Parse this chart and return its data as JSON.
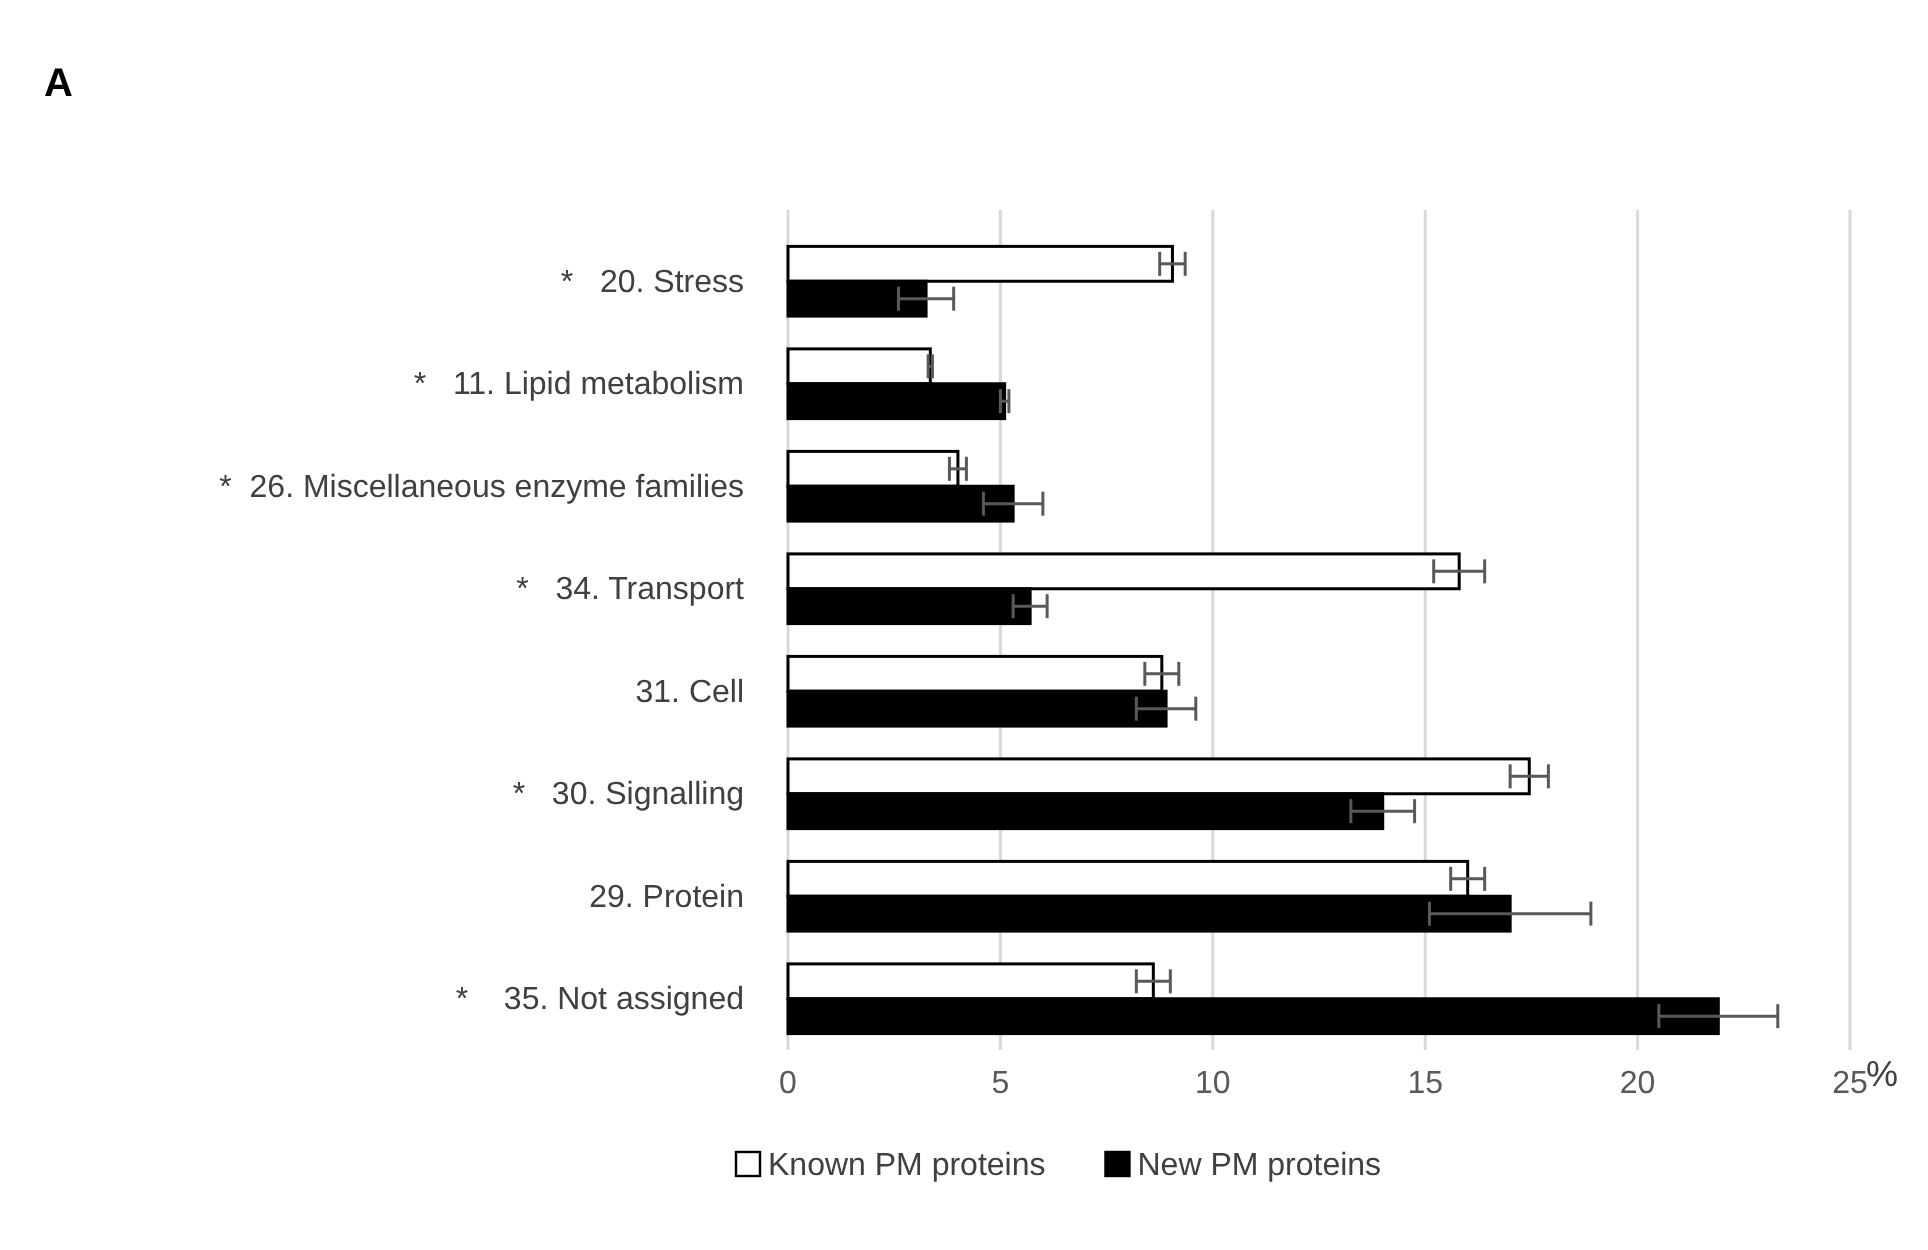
{
  "chart_data": {
    "type": "bar",
    "orientation": "horizontal",
    "title": "A",
    "xlabel": "%",
    "categories": [
      "*   20. Stress",
      "*   11. Lipid metabolism",
      "*  26. Miscellaneous enzyme families",
      "*   34. Transport",
      "31. Cell",
      "*   30. Signalling",
      "29. Protein",
      "*    35. Not assigned"
    ],
    "series": [
      {
        "name": "Known PM proteins",
        "color": "#ffffff",
        "values": [
          9.05,
          3.35,
          4.0,
          15.8,
          8.8,
          17.45,
          16.0,
          8.6
        ],
        "errors": [
          0.3,
          0.05,
          0.2,
          0.6,
          0.4,
          0.45,
          0.4,
          0.4
        ]
      },
      {
        "name": "New PM proteins",
        "color": "#000000",
        "values": [
          3.25,
          5.1,
          5.3,
          5.7,
          8.9,
          14.0,
          17.0,
          21.9
        ],
        "errors": [
          0.65,
          0.1,
          0.7,
          0.4,
          0.7,
          0.75,
          1.9,
          1.4
        ]
      }
    ],
    "xlim": [
      0,
      25
    ],
    "xticks": [
      0,
      5,
      10,
      15,
      20,
      25
    ],
    "grid": "x",
    "legend": "bottom"
  }
}
